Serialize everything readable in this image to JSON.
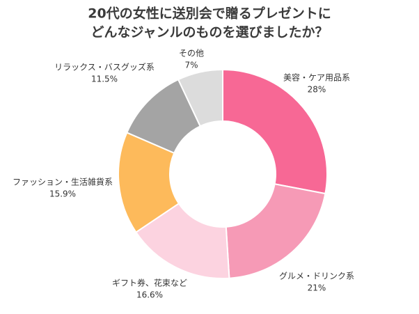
{
  "chart_data": {
    "type": "donut",
    "title": [
      "20代の女性に送別会で贈るプレゼントに",
      "どんなジャンルのものを選びましたか？"
    ],
    "categories": [
      "美容・ケア用品系",
      "グルメ・ドリンク系",
      "ギフト券、花束など",
      "ファッション・生活雑貨系",
      "リラックス・バスグッズ系",
      "その他"
    ],
    "values": [
      28,
      21,
      16.6,
      15.9,
      11.5,
      7
    ],
    "value_labels": [
      "28%",
      "21%",
      "16.6%",
      "15.9%",
      "11.5%",
      "7%"
    ],
    "colors": [
      "#f76895",
      "#f69ab6",
      "#fcd3e0",
      "#fdba5b",
      "#a4a4a4",
      "#dcdcdc"
    ]
  }
}
